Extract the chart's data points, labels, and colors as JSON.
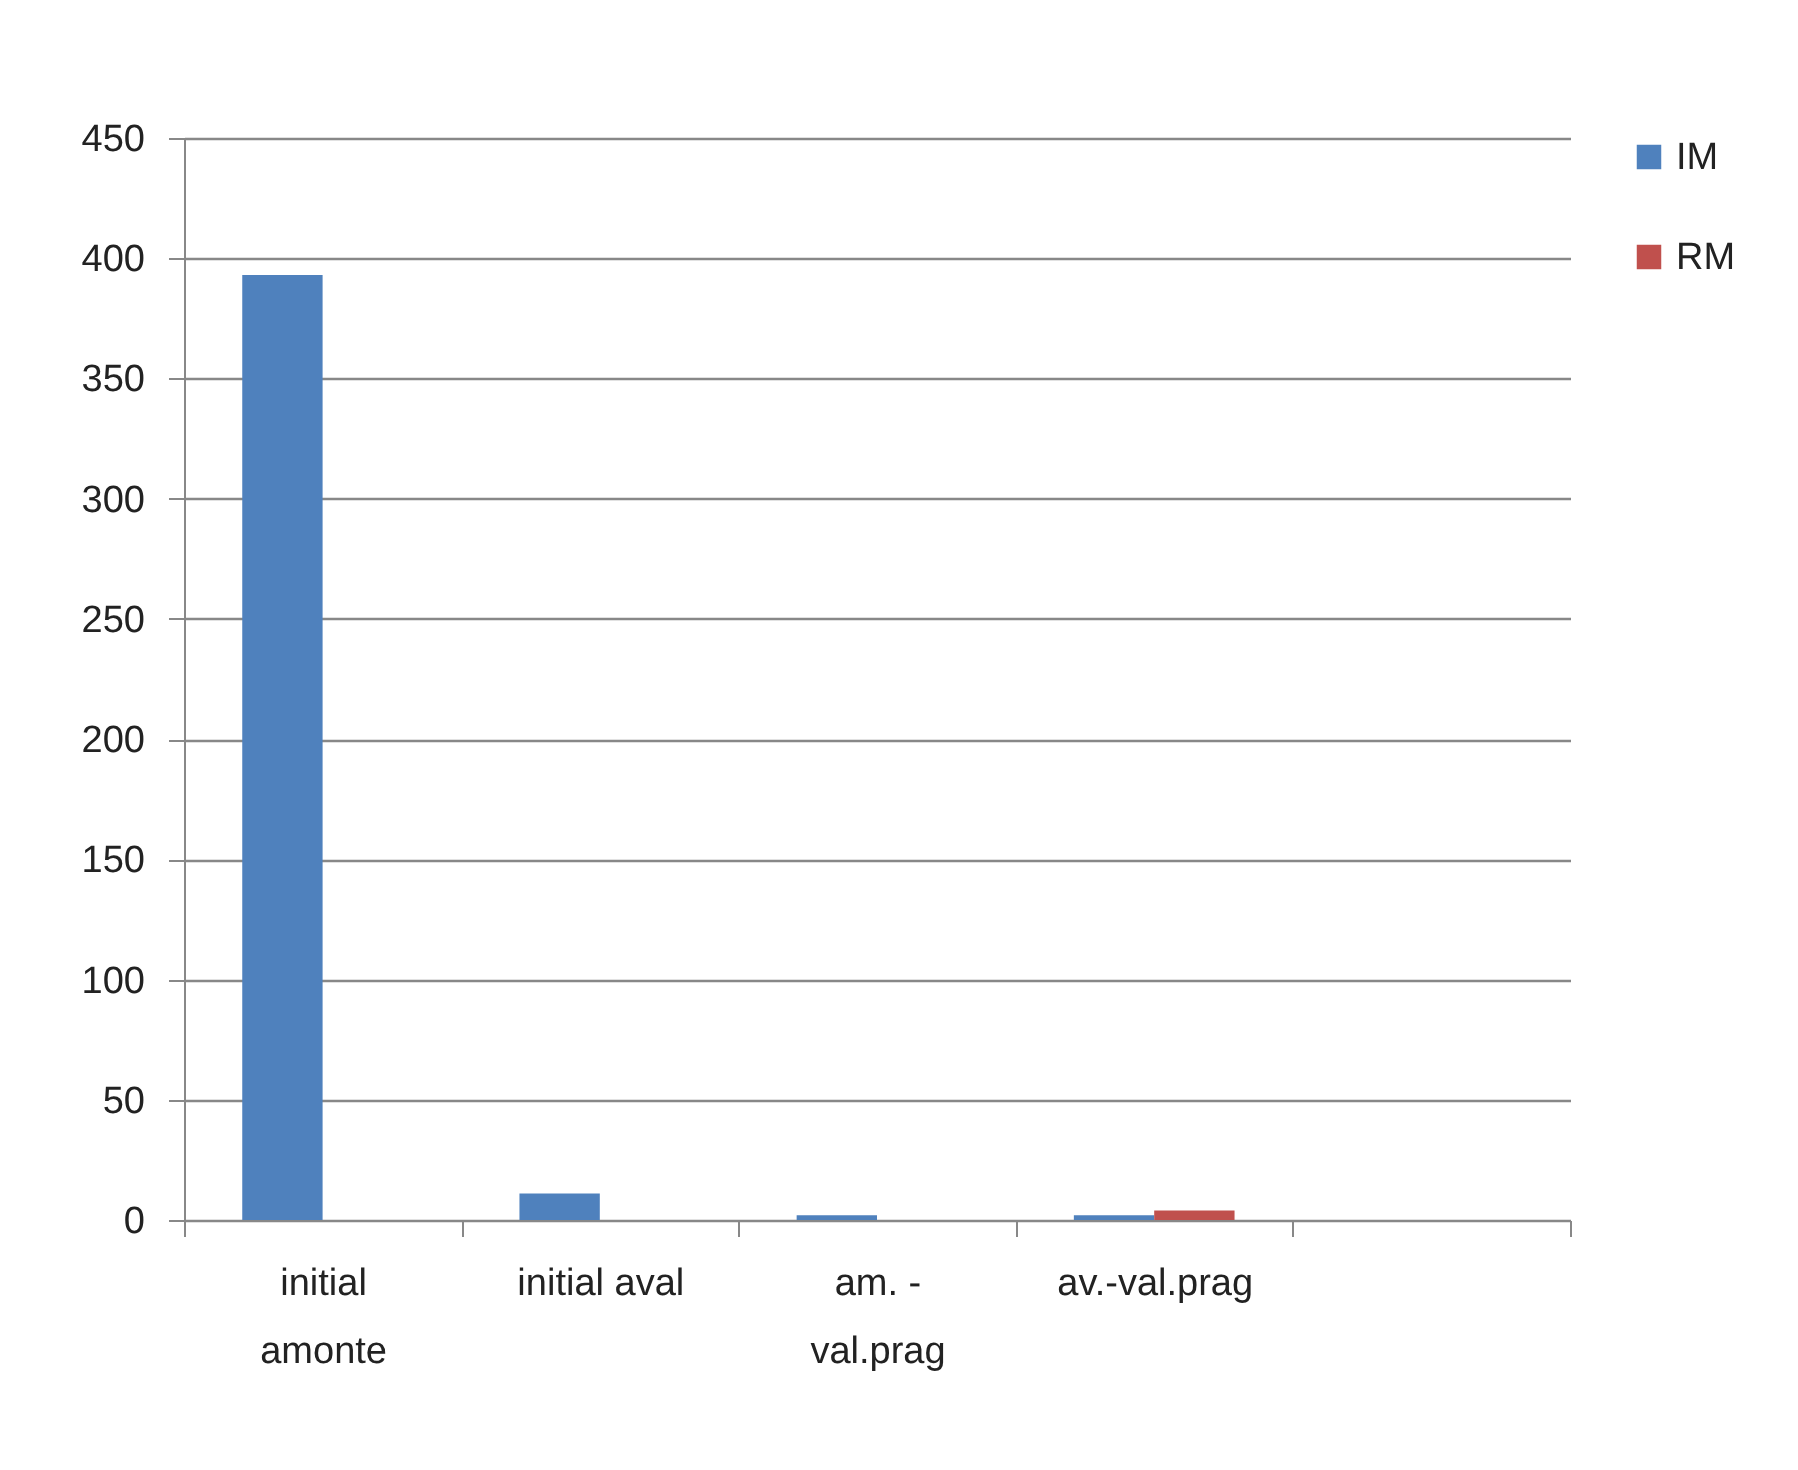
{
  "chart_data": {
    "type": "bar",
    "categories": [
      "initial amonte",
      "initial aval",
      "am. - val.prag",
      "av.-val.prag",
      null
    ],
    "series": [
      {
        "name": "IM",
        "color": "#4f81bd",
        "values": [
          393,
          11,
          2,
          2,
          0
        ]
      },
      {
        "name": "RM",
        "color": "#c0504d",
        "values": [
          0,
          0,
          0,
          4,
          0
        ]
      }
    ],
    "ylim": [
      0,
      450
    ],
    "yticks": [
      0,
      50,
      100,
      150,
      200,
      250,
      300,
      350,
      400,
      450
    ],
    "grid": "y",
    "legend": "right"
  }
}
